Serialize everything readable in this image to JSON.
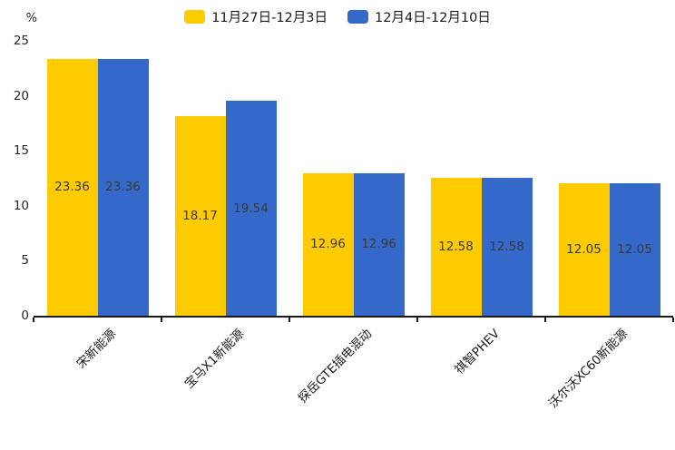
{
  "chart_data": {
    "type": "bar",
    "title": "",
    "unit_label": "%",
    "categories": [
      "宋新能源",
      "宝马X1新能源",
      "探岳GTE插电混动",
      "祺智PHEV",
      "沃尔沃XC60新能源"
    ],
    "series": [
      {
        "name": "11月27日-12月3日",
        "color": "#FECB00",
        "values": [
          23.36,
          18.17,
          12.96,
          12.58,
          12.05
        ]
      },
      {
        "name": "12月4日-12月10日",
        "color": "#3468C9",
        "values": [
          23.36,
          19.54,
          12.96,
          12.58,
          12.05
        ]
      }
    ],
    "ylim": [
      0,
      25
    ],
    "yticks": [
      0,
      5,
      10,
      15,
      20,
      25
    ],
    "legend_position": "top-center",
    "grid": false,
    "value_labels": true,
    "x_label_rotation_deg": 45
  },
  "colors": {
    "background": "#ffffff",
    "axis": "#1a1a1a",
    "tick_text": "#262626",
    "bar_value_text": "#3b3b3b"
  }
}
